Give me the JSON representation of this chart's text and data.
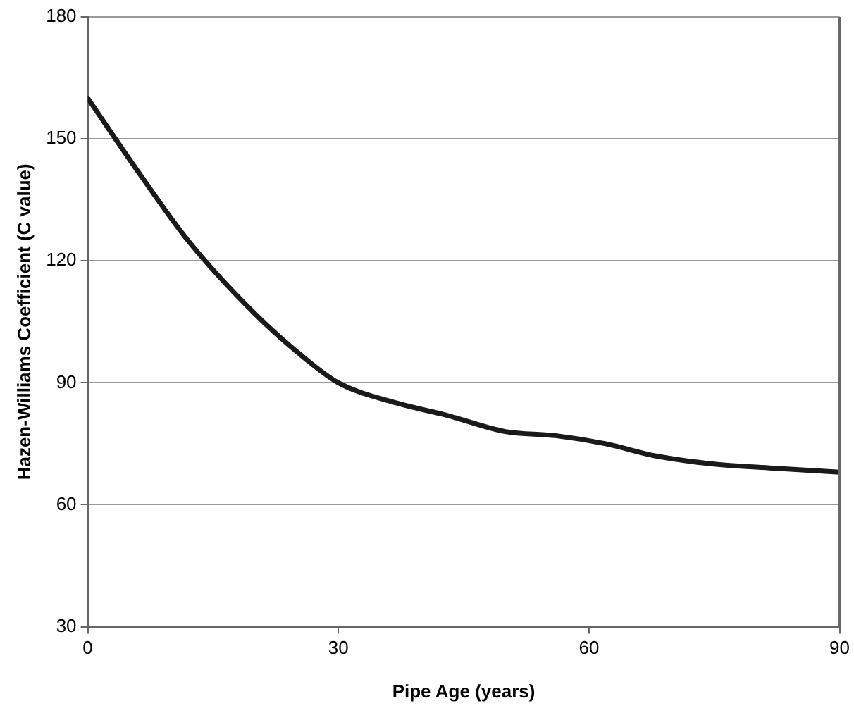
{
  "chart_data": {
    "type": "line",
    "xlabel": "Pipe Age (years)",
    "ylabel": "Hazen-Williams Coefficient (C value)",
    "x": [
      0,
      6,
      12,
      20,
      26,
      30,
      37,
      43,
      50,
      56,
      62,
      68,
      75,
      82,
      90
    ],
    "series": [
      {
        "color": "#1a1a1a",
        "values": [
          160,
          142,
          125,
          107,
          96,
          90,
          85,
          82,
          78,
          77,
          75,
          72,
          70,
          69,
          68
        ]
      }
    ],
    "xlim": [
      0,
      90
    ],
    "xticks": [
      0,
      30,
      60,
      90
    ],
    "ylim": [
      30,
      180
    ],
    "yticks": [
      30,
      60,
      90,
      120,
      150,
      180
    ],
    "grid": "y",
    "legend": false,
    "marker": "none",
    "line_style": "solid"
  }
}
